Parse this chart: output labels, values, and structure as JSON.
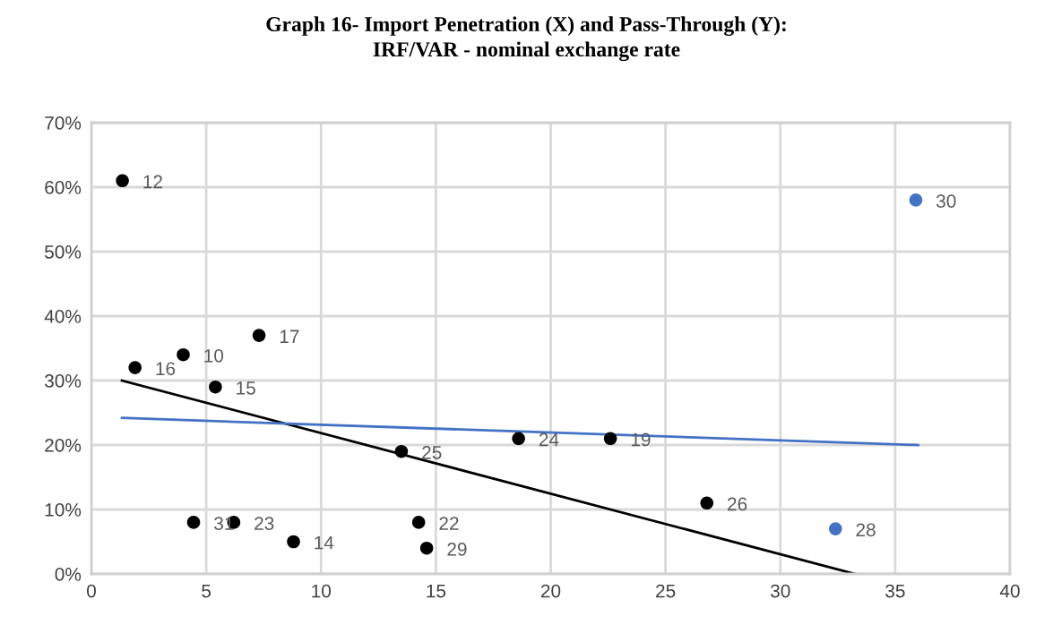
{
  "chart_data": {
    "type": "scatter",
    "title": "Graph 16- Import Penetration (X) and Pass-Through (Y):\nIRF/VAR - nominal exchange rate",
    "xlim": [
      0,
      40
    ],
    "xticks": [
      0,
      5,
      10,
      15,
      20,
      25,
      30,
      35,
      40
    ],
    "ylim": [
      0,
      70
    ],
    "yticks": [
      {
        "value": 0,
        "label": "0%"
      },
      {
        "value": 10,
        "label": "10%"
      },
      {
        "value": 20,
        "label": "20%"
      },
      {
        "value": 30,
        "label": "30%"
      },
      {
        "value": 40,
        "label": "40%"
      },
      {
        "value": 50,
        "label": "50%"
      },
      {
        "value": 60,
        "label": "60%"
      },
      {
        "value": 70,
        "label": "70%"
      }
    ],
    "grid": true,
    "series": [
      {
        "color": "#000000",
        "marker": "circle",
        "x": [
          1.35,
          1.9,
          4.0,
          7.3,
          5.4,
          4.45,
          6.2,
          8.8,
          13.5,
          14.25,
          14.6,
          18.6,
          22.6,
          26.8
        ],
        "values": [
          61,
          32,
          34,
          37,
          29,
          8,
          8,
          5,
          19,
          8,
          4,
          21,
          21,
          11
        ]
      },
      {
        "color": "#4472c4",
        "marker": "circle",
        "x": [
          35.9,
          32.4
        ],
        "values": [
          58,
          7
        ]
      },
      {
        "type": "line",
        "color": "#000000",
        "marker": "none",
        "x": [
          1.33,
          33.25
        ],
        "values": [
          30,
          0
        ]
      },
      {
        "type": "line",
        "color": "#4472c4",
        "marker": "none",
        "x": [
          1.33,
          36.0
        ],
        "values": [
          24.2,
          20
        ]
      }
    ],
    "annotations": [
      {
        "text": "12",
        "x": 1.35,
        "y": 61
      },
      {
        "text": "16",
        "x": 1.9,
        "y": 32
      },
      {
        "text": "10",
        "x": 4.0,
        "y": 34
      },
      {
        "text": "17",
        "x": 7.3,
        "y": 37
      },
      {
        "text": "15",
        "x": 5.4,
        "y": 29
      },
      {
        "text": "31",
        "x": 4.45,
        "y": 8
      },
      {
        "text": "23",
        "x": 6.2,
        "y": 8
      },
      {
        "text": "14",
        "x": 8.8,
        "y": 5
      },
      {
        "text": "25",
        "x": 13.5,
        "y": 19
      },
      {
        "text": "22",
        "x": 14.25,
        "y": 8
      },
      {
        "text": "29",
        "x": 14.6,
        "y": 4
      },
      {
        "text": "24",
        "x": 18.6,
        "y": 21
      },
      {
        "text": "19",
        "x": 22.6,
        "y": 21
      },
      {
        "text": "26",
        "x": 26.8,
        "y": 11
      },
      {
        "text": "30",
        "x": 35.9,
        "y": 58
      },
      {
        "text": "28",
        "x": 32.4,
        "y": 7
      }
    ]
  }
}
